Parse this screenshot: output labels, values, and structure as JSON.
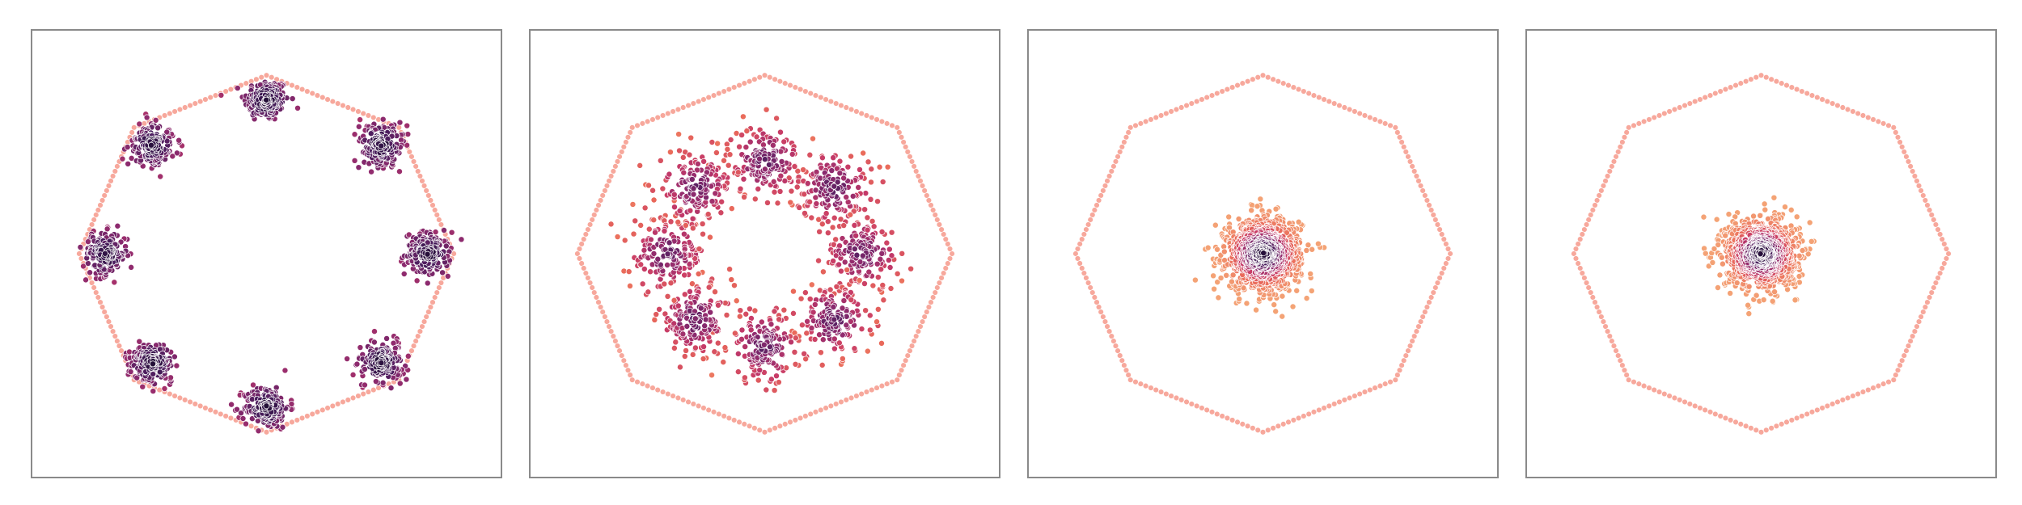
{
  "figure": {
    "background": "#ffffff",
    "frame_color": "#8a8a8a",
    "polygon_color": "#f7a89c",
    "colormap": [
      "#fde0c5",
      "#f5a878",
      "#ea6a5a",
      "#c63a68",
      "#8c2a6e",
      "#4a1d5e",
      "#1a0b2e"
    ]
  },
  "chart_data": [
    {
      "type": "scatter",
      "panel": 1,
      "title": "",
      "xlabel": "",
      "ylabel": "",
      "xlim": [
        -1.25,
        1.25
      ],
      "ylim": [
        -1.25,
        1.25
      ],
      "grid": false,
      "legend": "none",
      "boundary": {
        "shape": "octagon",
        "vertices": 8,
        "radius": 1.0,
        "rotation_deg": 90
      },
      "clusters": [
        {
          "center": [
            0.0,
            0.86
          ],
          "spread": 0.06,
          "n": 170,
          "density_color": "high"
        },
        {
          "center": [
            0.61,
            0.61
          ],
          "spread": 0.06,
          "n": 170,
          "density_color": "high"
        },
        {
          "center": [
            0.86,
            0.0
          ],
          "spread": 0.06,
          "n": 170,
          "density_color": "high"
        },
        {
          "center": [
            0.61,
            -0.61
          ],
          "spread": 0.06,
          "n": 170,
          "density_color": "high"
        },
        {
          "center": [
            0.0,
            -0.86
          ],
          "spread": 0.06,
          "n": 170,
          "density_color": "high"
        },
        {
          "center": [
            -0.61,
            -0.61
          ],
          "spread": 0.06,
          "n": 170,
          "density_color": "high"
        },
        {
          "center": [
            -0.86,
            0.0
          ],
          "spread": 0.06,
          "n": 170,
          "density_color": "high"
        },
        {
          "center": [
            -0.61,
            0.61
          ],
          "spread": 0.06,
          "n": 170,
          "density_color": "high"
        }
      ]
    },
    {
      "type": "scatter",
      "panel": 2,
      "title": "",
      "xlabel": "",
      "ylabel": "",
      "xlim": [
        -1.25,
        1.25
      ],
      "ylim": [
        -1.25,
        1.25
      ],
      "grid": false,
      "legend": "none",
      "boundary": {
        "shape": "octagon",
        "vertices": 8,
        "radius": 1.0,
        "rotation_deg": 90
      },
      "clusters": [
        {
          "center": [
            0.0,
            0.52
          ],
          "spread": 0.1,
          "n": 160,
          "density_color": "mid"
        },
        {
          "center": [
            0.37,
            0.37
          ],
          "spread": 0.1,
          "n": 160,
          "density_color": "mid"
        },
        {
          "center": [
            0.52,
            0.0
          ],
          "spread": 0.1,
          "n": 160,
          "density_color": "mid"
        },
        {
          "center": [
            0.37,
            -0.37
          ],
          "spread": 0.1,
          "n": 160,
          "density_color": "mid"
        },
        {
          "center": [
            0.0,
            -0.52
          ],
          "spread": 0.1,
          "n": 160,
          "density_color": "mid"
        },
        {
          "center": [
            -0.37,
            -0.37
          ],
          "spread": 0.1,
          "n": 160,
          "density_color": "mid"
        },
        {
          "center": [
            -0.52,
            0.0
          ],
          "spread": 0.1,
          "n": 160,
          "density_color": "mid"
        },
        {
          "center": [
            -0.37,
            0.37
          ],
          "spread": 0.1,
          "n": 160,
          "density_color": "mid"
        }
      ]
    },
    {
      "type": "scatter",
      "panel": 3,
      "title": "",
      "xlabel": "",
      "ylabel": "",
      "xlim": [
        -1.25,
        1.25
      ],
      "ylim": [
        -1.25,
        1.25
      ],
      "grid": false,
      "legend": "none",
      "boundary": {
        "shape": "octagon",
        "vertices": 8,
        "radius": 1.0,
        "rotation_deg": 90
      },
      "clusters": [
        {
          "center": [
            0.0,
            0.0
          ],
          "spread": 0.1,
          "n": 1100,
          "density_color": "radial"
        }
      ]
    },
    {
      "type": "scatter",
      "panel": 4,
      "title": "",
      "xlabel": "",
      "ylabel": "",
      "xlim": [
        -1.25,
        1.25
      ],
      "ylim": [
        -1.25,
        1.25
      ],
      "grid": false,
      "legend": "none",
      "boundary": {
        "shape": "octagon",
        "vertices": 8,
        "radius": 1.0,
        "rotation_deg": 90
      },
      "clusters": [
        {
          "center": [
            0.0,
            0.0
          ],
          "spread": 0.095,
          "n": 1100,
          "density_color": "radial"
        }
      ]
    }
  ]
}
